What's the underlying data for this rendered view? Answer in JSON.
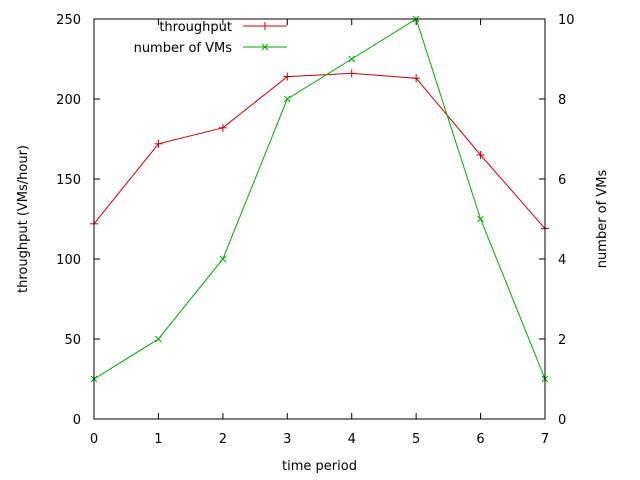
{
  "chart_data": {
    "type": "line",
    "title": "",
    "xlabel": "time period",
    "ylabel": "throughput (VMs/hour)",
    "y2label": "number of VMs",
    "xlim": [
      0,
      7
    ],
    "ylim": [
      0,
      250
    ],
    "y2lim": [
      0,
      10
    ],
    "x_ticks": [
      "0",
      "1",
      "2",
      "3",
      "4",
      "5",
      "6",
      "7"
    ],
    "y_ticks": [
      "0",
      "50",
      "100",
      "150",
      "200",
      "250"
    ],
    "y2_ticks": [
      "0",
      "2",
      "4",
      "6",
      "8",
      "10"
    ],
    "grid": false,
    "legend_position": "top-left",
    "series": [
      {
        "name": "throughput",
        "axis": "left",
        "color": "#cc0000",
        "marker": "plus",
        "x": [
          0,
          1,
          2,
          3,
          4,
          5,
          6,
          7
        ],
        "y": [
          122,
          172,
          182,
          214,
          216,
          213,
          165,
          119
        ]
      },
      {
        "name": "number of VMs",
        "axis": "right",
        "color": "#00aa00",
        "marker": "cross",
        "x": [
          0,
          1,
          2,
          3,
          4,
          5,
          6,
          7
        ],
        "y": [
          1,
          2,
          4,
          8,
          9,
          10,
          5,
          1
        ]
      }
    ]
  }
}
